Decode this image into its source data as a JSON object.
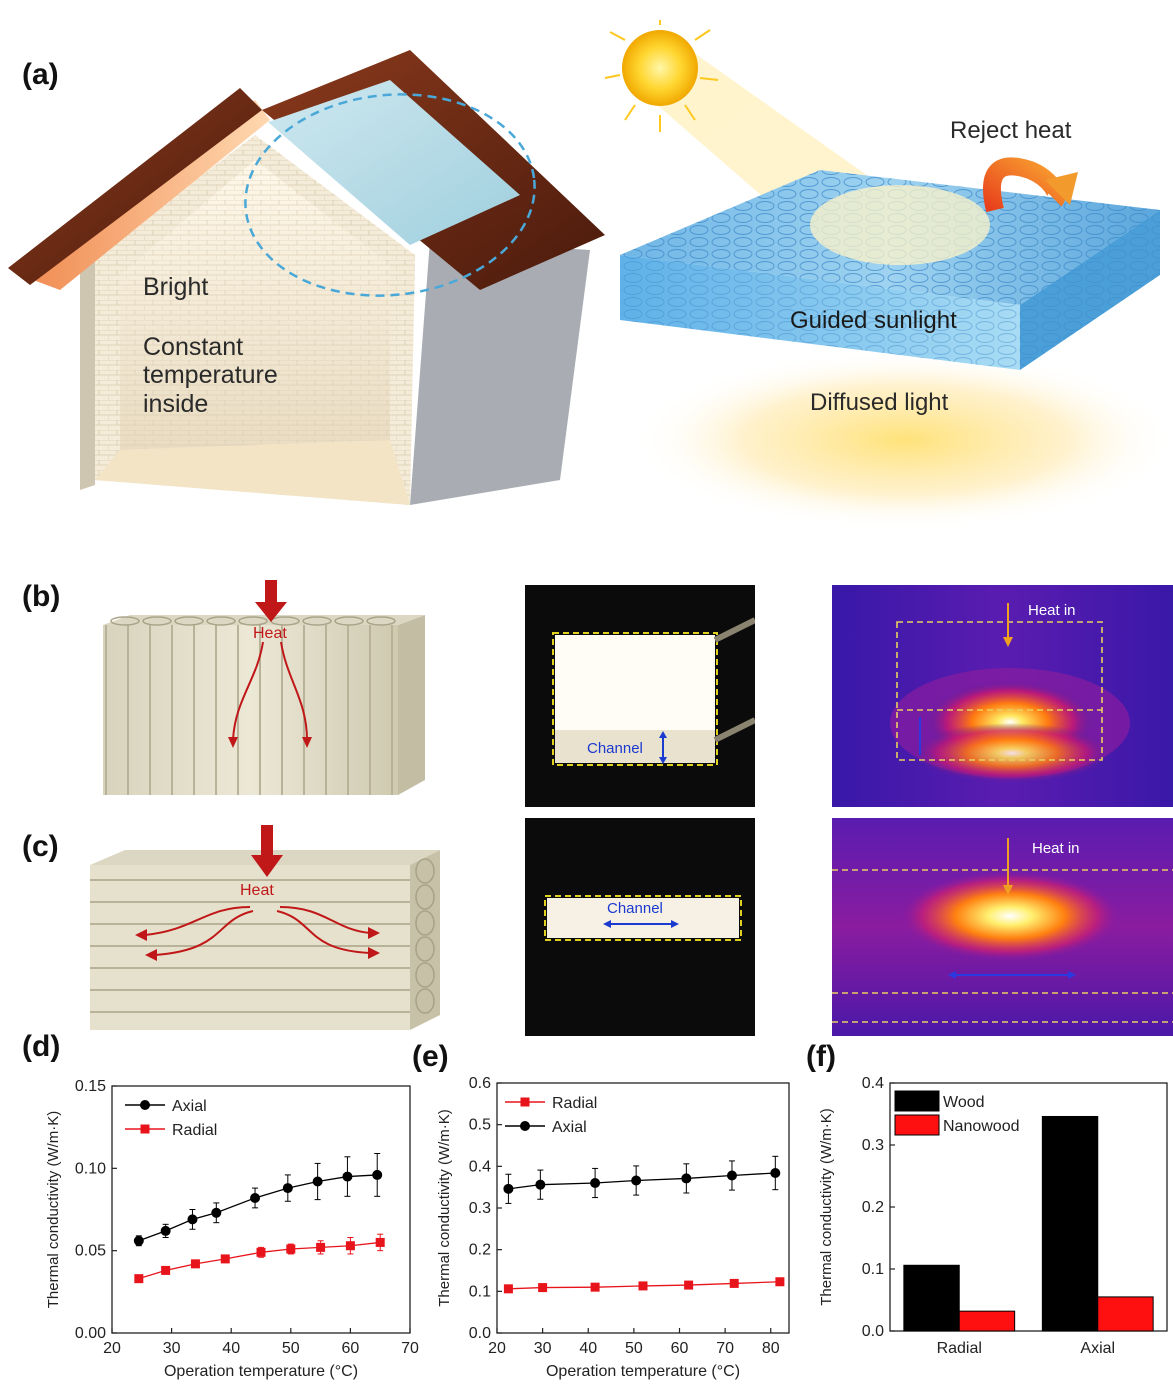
{
  "panels": {
    "a": {
      "label": "(a)",
      "house": {
        "bright": "Bright",
        "constant_1": "Constant",
        "constant_2": "temperature",
        "constant_3": "inside"
      },
      "material": {
        "reject_heat": "Reject heat",
        "guided_sunlight": "Guided sunlight",
        "diffused_light": "Diffused light"
      }
    },
    "b": {
      "label": "(b)",
      "heat": "Heat",
      "channel": "Channel",
      "heat_in": "Heat in"
    },
    "c": {
      "label": "(c)",
      "heat": "Heat",
      "channel": "Channel",
      "heat_in": "Heat in"
    },
    "d": {
      "label": "(d)"
    },
    "e": {
      "label": "(e)"
    },
    "f": {
      "label": "(f)"
    }
  },
  "colors": {
    "axial_series": "#000000",
    "radial_series": "#e8141c",
    "wood": "#000000",
    "nanowood": "#ff1010"
  },
  "chart_data": [
    {
      "id": "d",
      "type": "line",
      "xlabel": "Operation temperature (°C)",
      "ylabel": "Thermal conductivity (W/m·K)",
      "xlim": [
        20,
        70
      ],
      "ylim": [
        0.0,
        0.15
      ],
      "xticks": [
        "20",
        "30",
        "40",
        "50",
        "60",
        "70"
      ],
      "yticks": [
        "0.00",
        "0.05",
        "0.10",
        "0.15"
      ],
      "legend_position": "top-left",
      "series": [
        {
          "name": "Axial",
          "color": "#000000",
          "marker": "circle",
          "x": [
            24.5,
            29,
            33.5,
            37.5,
            44,
            49.5,
            54.5,
            59.5,
            64.5
          ],
          "y": [
            0.056,
            0.062,
            0.069,
            0.073,
            0.082,
            0.088,
            0.092,
            0.095,
            0.096
          ],
          "err": [
            0.003,
            0.004,
            0.006,
            0.006,
            0.006,
            0.008,
            0.011,
            0.012,
            0.013
          ]
        },
        {
          "name": "Radial",
          "color": "#e8141c",
          "marker": "square",
          "x": [
            24.5,
            29,
            34,
            39,
            45,
            50,
            55,
            60,
            65
          ],
          "y": [
            0.033,
            0.038,
            0.042,
            0.045,
            0.049,
            0.051,
            0.052,
            0.053,
            0.055
          ],
          "err": [
            0.002,
            0.002,
            0.002,
            0.002,
            0.003,
            0.003,
            0.004,
            0.005,
            0.005
          ]
        }
      ]
    },
    {
      "id": "e",
      "type": "line",
      "xlabel": "Operation temperature (°C)",
      "ylabel": "Thermal conductivity (W/m·K)",
      "xlim": [
        20,
        84
      ],
      "ylim": [
        0.0,
        0.6
      ],
      "xticks": [
        "20",
        "30",
        "40",
        "50",
        "60",
        "70",
        "80"
      ],
      "yticks": [
        "0.0",
        "0.1",
        "0.2",
        "0.3",
        "0.4",
        "0.5",
        "0.6"
      ],
      "legend_position": "top-left",
      "series": [
        {
          "name": "Radial",
          "color": "#e8141c",
          "marker": "square",
          "x": [
            22.5,
            30,
            41.5,
            52,
            62,
            72,
            82
          ],
          "y": [
            0.106,
            0.109,
            0.11,
            0.113,
            0.115,
            0.119,
            0.123
          ],
          "err": [
            0.006,
            0.006,
            0.006,
            0.006,
            0.006,
            0.008,
            0.008
          ]
        },
        {
          "name": "Axial",
          "color": "#000000",
          "marker": "circle",
          "x": [
            22.5,
            29.5,
            41.5,
            50.5,
            61.5,
            71.5,
            81
          ],
          "y": [
            0.346,
            0.356,
            0.36,
            0.366,
            0.371,
            0.378,
            0.384
          ],
          "err": [
            0.035,
            0.035,
            0.035,
            0.035,
            0.035,
            0.035,
            0.04
          ]
        }
      ]
    },
    {
      "id": "f",
      "type": "bar",
      "ylabel": "Thermal conductivity (W/m·K)",
      "categories": [
        "Radial",
        "Axial"
      ],
      "ylim": [
        0.0,
        0.4
      ],
      "yticks": [
        "0.0",
        "0.1",
        "0.2",
        "0.3",
        "0.4"
      ],
      "legend_position": "top-left",
      "series": [
        {
          "name": "Wood",
          "color": "#000000",
          "values": [
            0.106,
            0.346
          ]
        },
        {
          "name": "Nanowood",
          "color": "#ff1010",
          "values": [
            0.032,
            0.055
          ]
        }
      ]
    }
  ]
}
